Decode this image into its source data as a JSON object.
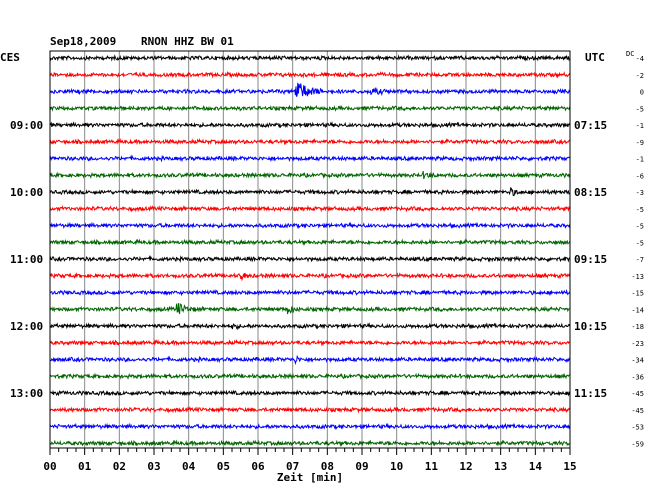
{
  "header": {
    "date": "Sep18,2009",
    "station": "RNON HHZ BW 01",
    "left_zone": "CES",
    "right_zone": "UTC",
    "dc_label": "DC"
  },
  "chart_data": {
    "type": "line",
    "title": "Sep18,2009  RNON HHZ BW 01",
    "xlabel": "Zeit [min]",
    "ylabel": "",
    "xlim": [
      0,
      15
    ],
    "x_ticks": [
      "00",
      "01",
      "02",
      "03",
      "04",
      "05",
      "06",
      "07",
      "08",
      "09",
      "10",
      "11",
      "12",
      "13",
      "14",
      "15"
    ],
    "grid": true,
    "trace_colors": [
      "#000000",
      "#ff0000",
      "#0000ff",
      "#006400"
    ],
    "left_time_labels": [
      {
        "row": 4,
        "label": "09:00"
      },
      {
        "row": 8,
        "label": "10:00"
      },
      {
        "row": 12,
        "label": "11:00"
      },
      {
        "row": 16,
        "label": "12:00"
      },
      {
        "row": 20,
        "label": "13:00"
      }
    ],
    "right_time_labels": [
      {
        "row": 4,
        "label": "07:15"
      },
      {
        "row": 8,
        "label": "08:15"
      },
      {
        "row": 12,
        "label": "09:15"
      },
      {
        "row": 16,
        "label": "10:15"
      },
      {
        "row": 20,
        "label": "11:15"
      }
    ],
    "dc_offsets": [
      -4,
      -2,
      0,
      -5,
      -1,
      -9,
      -1,
      -6,
      -3,
      -5,
      -5,
      -5,
      -7,
      -13,
      -15,
      -14,
      -18,
      -23,
      -34,
      -36,
      -45,
      -45,
      -53,
      -59
    ],
    "events": [
      {
        "row": 2,
        "minute": 7.1,
        "amplitude": 11,
        "duration": 0.9
      },
      {
        "row": 2,
        "minute": 9.3,
        "amplitude": 3,
        "duration": 0.6
      },
      {
        "row": 7,
        "minute": 10.8,
        "amplitude": 2.5,
        "duration": 0.5
      },
      {
        "row": 8,
        "minute": 13.3,
        "amplitude": 3,
        "duration": 0.4
      },
      {
        "row": 13,
        "minute": 5.5,
        "amplitude": 3.5,
        "duration": 0.3
      },
      {
        "row": 15,
        "minute": 3.7,
        "amplitude": 5,
        "duration": 0.6
      },
      {
        "row": 15,
        "minute": 6.9,
        "amplitude": 4,
        "duration": 0.3
      },
      {
        "row": 16,
        "minute": 5.3,
        "amplitude": 2.5,
        "duration": 0.3
      },
      {
        "row": 18,
        "minute": 7.1,
        "amplitude": 3,
        "duration": 0.2
      }
    ]
  }
}
